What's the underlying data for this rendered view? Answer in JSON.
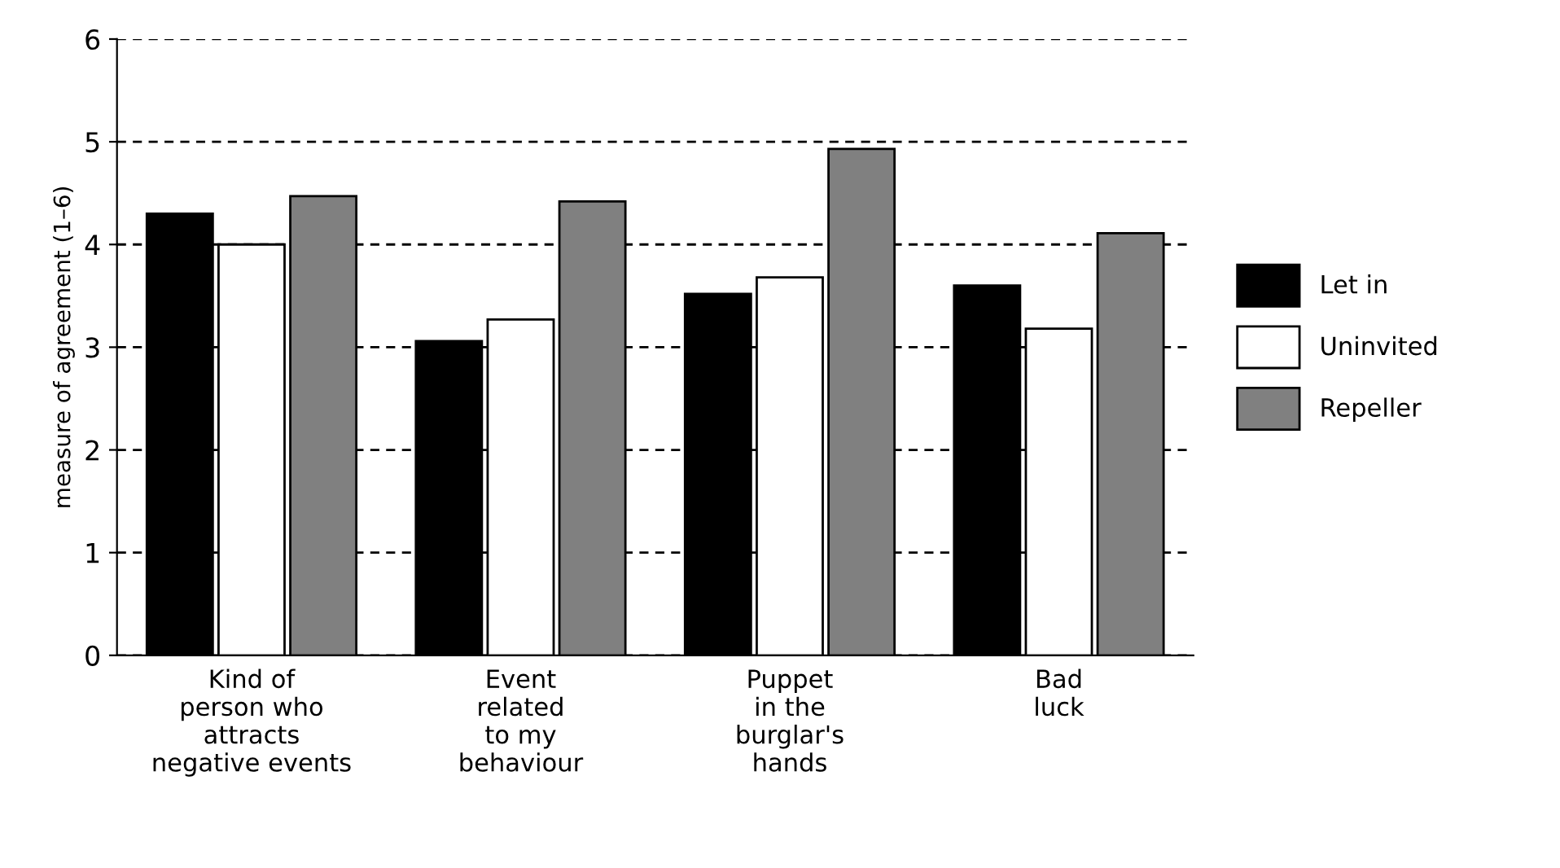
{
  "chart_data": {
    "type": "bar",
    "ylabel": "measure of agreement (1–6)",
    "categories": [
      "Kind of\nperson who\nattracts\nnegative events",
      "Event\nrelated\nto my\nbehaviour",
      "Puppet\nin the\nburglar's\nhands",
      "Bad\nluck"
    ],
    "series": [
      {
        "name": "Let in",
        "color": "#000000",
        "values": [
          4.3,
          3.06,
          3.52,
          3.6
        ]
      },
      {
        "name": "Uninvited",
        "color": "#ffffff",
        "values": [
          4.0,
          3.27,
          3.68,
          3.18
        ]
      },
      {
        "name": "Repeller",
        "color": "#808080",
        "values": [
          4.47,
          4.42,
          4.93,
          4.11
        ]
      }
    ],
    "ylim": [
      0,
      6
    ],
    "yticks": [
      0,
      1,
      2,
      3,
      4,
      5,
      6
    ],
    "grid": "y",
    "legend": "right"
  }
}
